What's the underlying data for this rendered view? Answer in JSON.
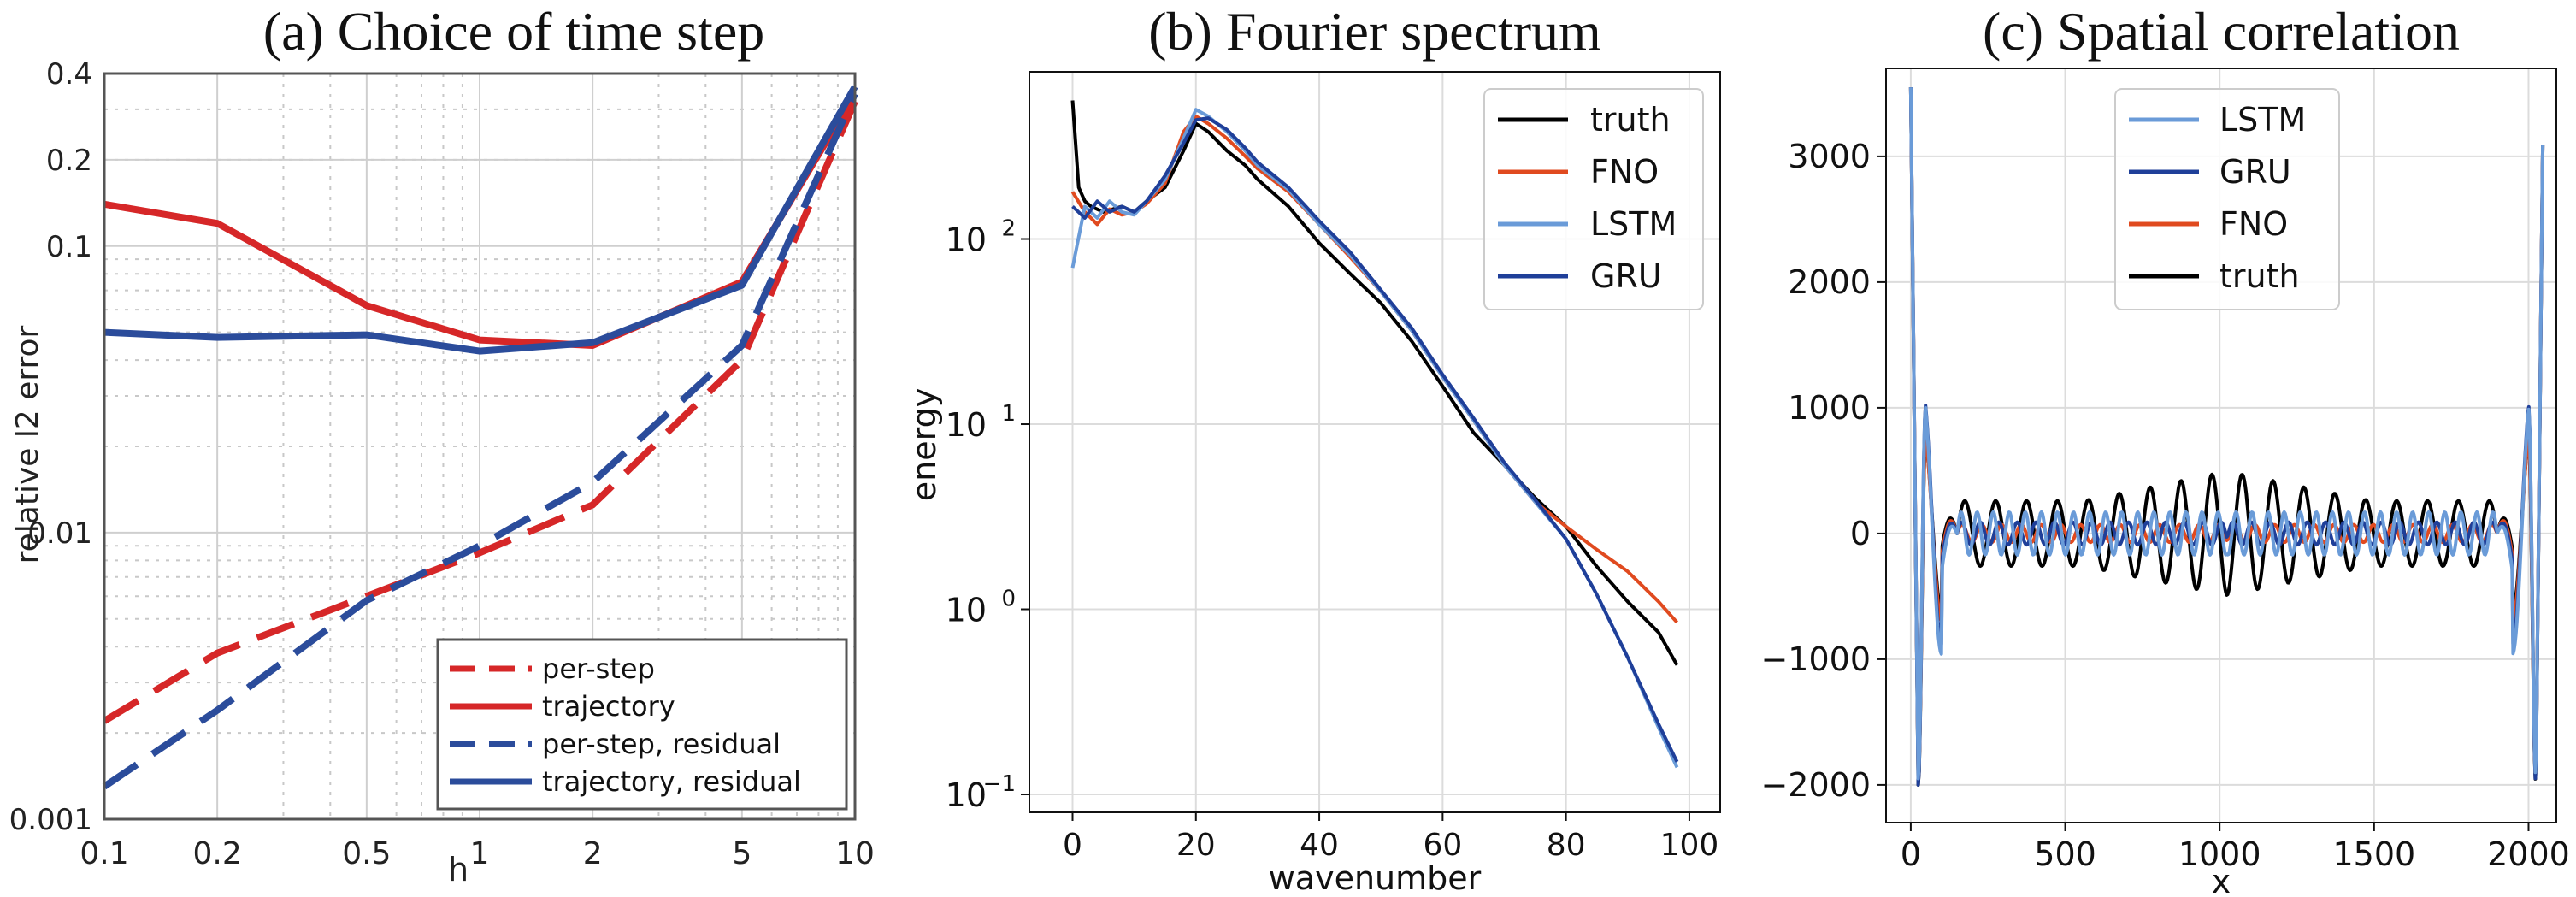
{
  "chart_data": [
    {
      "type": "line",
      "title": "(a) Choice of time step",
      "xlabel": "h",
      "ylabel": "relative l2 error",
      "xscale": "log",
      "yscale": "log",
      "xlim": [
        0.1,
        10
      ],
      "ylim": [
        0.001,
        0.4
      ],
      "grid": true,
      "xticks": [
        {
          "value": 0.1,
          "label": "0.1"
        },
        {
          "value": 0.2,
          "label": "0.2"
        },
        {
          "value": 0.5,
          "label": "0.5"
        },
        {
          "value": 1,
          "label": "1"
        },
        {
          "value": 2,
          "label": "2"
        },
        {
          "value": 5,
          "label": "5"
        },
        {
          "value": 10,
          "label": "10"
        }
      ],
      "yticks": [
        {
          "value": 0.001,
          "label": "0.001"
        },
        {
          "value": 0.01,
          "label": "0.01"
        },
        {
          "value": 0.1,
          "label": "0.1"
        },
        {
          "value": 0.2,
          "label": "0.2"
        },
        {
          "value": 0.4,
          "label": "0.4"
        }
      ],
      "legend_position": "bottom-right",
      "series": [
        {
          "name": "per-step",
          "color": "#d62728",
          "dash": true,
          "x": [
            0.1,
            0.2,
            0.5,
            1,
            2,
            5,
            10
          ],
          "y": [
            0.0022,
            0.0038,
            0.006,
            0.0085,
            0.0125,
            0.04,
            0.32
          ]
        },
        {
          "name": "trajectory",
          "color": "#d62728",
          "dash": false,
          "x": [
            0.1,
            0.2,
            0.5,
            1,
            2,
            5,
            10
          ],
          "y": [
            0.14,
            0.12,
            0.062,
            0.047,
            0.045,
            0.075,
            0.34
          ]
        },
        {
          "name": "per-step, residual",
          "color": "#2b4c9b",
          "dash": true,
          "x": [
            0.1,
            0.2,
            0.5,
            1,
            2,
            5,
            10
          ],
          "y": [
            0.0013,
            0.0024,
            0.0058,
            0.009,
            0.015,
            0.045,
            0.34
          ]
        },
        {
          "name": "trajectory, residual",
          "color": "#2b4c9b",
          "dash": false,
          "x": [
            0.1,
            0.2,
            0.5,
            1,
            2,
            5,
            10
          ],
          "y": [
            0.05,
            0.048,
            0.049,
            0.043,
            0.046,
            0.073,
            0.36
          ]
        }
      ]
    },
    {
      "type": "line",
      "title": "(b) Fourier spectrum",
      "xlabel": "wavenumber",
      "ylabel": "energy",
      "yscale": "log",
      "xlim": [
        -7,
        105
      ],
      "ylim": [
        0.08,
        800
      ],
      "grid": true,
      "xticks": [
        {
          "value": 0,
          "label": "0"
        },
        {
          "value": 20,
          "label": "20"
        },
        {
          "value": 40,
          "label": "40"
        },
        {
          "value": 60,
          "label": "60"
        },
        {
          "value": 80,
          "label": "80"
        },
        {
          "value": 100,
          "label": "100"
        }
      ],
      "yticks": [
        {
          "value": 0.1,
          "base": "10",
          "exp": "−1"
        },
        {
          "value": 1,
          "base": "10",
          "exp": "0"
        },
        {
          "value": 10,
          "base": "10",
          "exp": "1"
        },
        {
          "value": 100,
          "base": "10",
          "exp": "2"
        }
      ],
      "legend_position": "top-right",
      "series": [
        {
          "name": "truth",
          "color": "#000000",
          "x": [
            0,
            1,
            2,
            3,
            5,
            8,
            10,
            12,
            15,
            18,
            20,
            22,
            25,
            28,
            30,
            35,
            40,
            45,
            50,
            55,
            60,
            65,
            70,
            75,
            80,
            85,
            90,
            95,
            98
          ],
          "y": [
            560,
            190,
            160,
            150,
            140,
            150,
            140,
            160,
            190,
            300,
            420,
            380,
            300,
            250,
            210,
            150,
            95,
            65,
            45,
            28,
            16,
            9,
            6,
            4,
            2.8,
            1.7,
            1.1,
            0.75,
            0.5
          ]
        },
        {
          "name": "FNO",
          "color": "#e04a1f",
          "x": [
            0,
            2,
            4,
            6,
            8,
            10,
            12,
            15,
            18,
            20,
            22,
            25,
            28,
            30,
            35,
            40,
            45,
            50,
            55,
            60,
            65,
            70,
            75,
            80,
            85,
            90,
            95,
            98
          ],
          "y": [
            180,
            140,
            120,
            145,
            135,
            140,
            155,
            200,
            380,
            460,
            420,
            350,
            280,
            240,
            180,
            120,
            80,
            52,
            32,
            18,
            10.5,
            6,
            3.8,
            2.8,
            2.1,
            1.6,
            1.1,
            0.85
          ]
        },
        {
          "name": "LSTM",
          "color": "#6a9bd8",
          "x": [
            0,
            2,
            4,
            6,
            8,
            10,
            12,
            15,
            18,
            20,
            22,
            25,
            28,
            30,
            35,
            40,
            45,
            50,
            55,
            60,
            65,
            70,
            75,
            80,
            85,
            90,
            95,
            98
          ],
          "y": [
            70,
            150,
            130,
            160,
            140,
            135,
            160,
            210,
            350,
            500,
            460,
            380,
            300,
            250,
            185,
            120,
            82,
            52,
            32,
            18,
            10.5,
            6,
            3.8,
            2.4,
            1.2,
            0.55,
            0.23,
            0.14
          ]
        },
        {
          "name": "GRU",
          "color": "#1f3f99",
          "x": [
            0,
            2,
            4,
            6,
            8,
            10,
            12,
            15,
            18,
            20,
            22,
            25,
            28,
            30,
            35,
            40,
            45,
            50,
            55,
            60,
            65,
            70,
            75,
            80,
            85,
            90,
            95,
            98
          ],
          "y": [
            150,
            130,
            160,
            140,
            150,
            140,
            160,
            220,
            330,
            440,
            450,
            390,
            310,
            260,
            190,
            125,
            85,
            53,
            33,
            18.5,
            10.8,
            6.2,
            3.9,
            2.4,
            1.2,
            0.55,
            0.24,
            0.15
          ]
        }
      ]
    },
    {
      "type": "line",
      "title": "(c) Spatial correlation",
      "xlabel": "x",
      "ylabel": "",
      "xlim": [
        -80,
        2090
      ],
      "ylim": [
        -2300,
        3700
      ],
      "grid": true,
      "xticks": [
        {
          "value": 0,
          "label": "0"
        },
        {
          "value": 500,
          "label": "500"
        },
        {
          "value": 1000,
          "label": "1000"
        },
        {
          "value": 1500,
          "label": "1500"
        },
        {
          "value": 2000,
          "label": "2000"
        }
      ],
      "yticks": [
        {
          "value": -2000,
          "label": "−2000"
        },
        {
          "value": -1000,
          "label": "−1000"
        },
        {
          "value": 0,
          "label": "0"
        },
        {
          "value": 1000,
          "label": "1000"
        },
        {
          "value": 2000,
          "label": "2000"
        },
        {
          "value": 3000,
          "label": "3000"
        }
      ],
      "legend_position": "top-center",
      "series": [
        {
          "name": "LSTM",
          "color": "#6a9bd8",
          "style": "corr",
          "peak": 3550,
          "trough": -1950,
          "side": 1000,
          "base_amp": 170,
          "base_period": 52,
          "tail": 600
        },
        {
          "name": "GRU",
          "color": "#1f3f99",
          "style": "corr",
          "peak": 3550,
          "trough": -2000,
          "side": 1020,
          "base_amp": 90,
          "base_period": 60,
          "tail": 450
        },
        {
          "name": "FNO",
          "color": "#e04a1f",
          "style": "corr",
          "peak": 3550,
          "trough": -1950,
          "side": 800,
          "base_amp": 70,
          "base_period": 64,
          "tail": 350
        },
        {
          "name": "truth",
          "color": "#000000",
          "style": "corr",
          "peak": 3550,
          "trough": -2000,
          "side": 780,
          "base_amp": 260,
          "base_period": 100,
          "tail": 250,
          "mid_boost": 1
        }
      ]
    }
  ]
}
